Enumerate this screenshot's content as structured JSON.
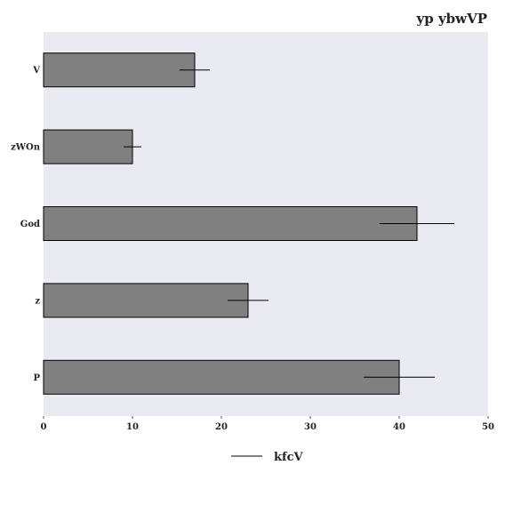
{
  "chart_data": {
    "type": "bar",
    "orientation": "horizontal",
    "title": "yp ybwVP",
    "categories": [
      "V",
      "zWOn",
      "God",
      "z",
      "P"
    ],
    "series": [
      {
        "name": "kfcV",
        "values": [
          17,
          10,
          42,
          23,
          40
        ],
        "errors": [
          1.7,
          1.0,
          4.2,
          2.3,
          4.0
        ],
        "color": "#808080"
      }
    ],
    "xlim": [
      0,
      50
    ],
    "xticks": [
      0,
      10,
      20,
      30,
      40,
      50
    ],
    "grid": false,
    "legend_position": "bottom-center",
    "plot_background": "#eaeaf2"
  }
}
